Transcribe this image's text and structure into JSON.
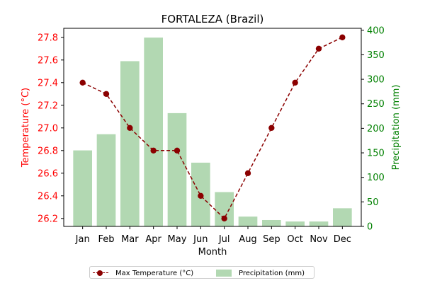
{
  "chart_data": {
    "type": "bar+line",
    "title": "FORTALEZA (Brazil)",
    "xlabel": "Month",
    "categories": [
      "Jan",
      "Feb",
      "Mar",
      "Apr",
      "May",
      "Jun",
      "Jul",
      "Aug",
      "Sep",
      "Oct",
      "Nov",
      "Dec"
    ],
    "series": [
      {
        "name": "Max Temperature (°C)",
        "type": "line",
        "axis": "left",
        "values": [
          27.4,
          27.3,
          27.0,
          26.8,
          26.8,
          26.4,
          26.2,
          26.6,
          27.0,
          27.4,
          27.7,
          27.8
        ],
        "color": "#8b0000",
        "style": "dashed",
        "marker": "circle"
      },
      {
        "name": "Precipitation (mm)",
        "type": "bar",
        "axis": "right",
        "values": [
          155,
          188,
          337,
          385,
          231,
          130,
          70,
          20,
          13,
          10,
          10,
          37
        ],
        "color": "#b2d8b2"
      }
    ],
    "y_left": {
      "label": "Temperature (°C)",
      "ticks": [
        "26.2",
        "26.4",
        "26.6",
        "26.8",
        "27.0",
        "27.2",
        "27.4",
        "27.6",
        "27.8"
      ],
      "lim": [
        26.13,
        27.88
      ],
      "color": "#ff0000"
    },
    "y_right": {
      "label": "Precipitation (mm)",
      "ticks": [
        "0",
        "50",
        "100",
        "150",
        "200",
        "250",
        "300",
        "350",
        "400"
      ],
      "lim": [
        0,
        404
      ],
      "color": "#008000"
    },
    "grid": false,
    "legend_position": "bottom-center"
  }
}
